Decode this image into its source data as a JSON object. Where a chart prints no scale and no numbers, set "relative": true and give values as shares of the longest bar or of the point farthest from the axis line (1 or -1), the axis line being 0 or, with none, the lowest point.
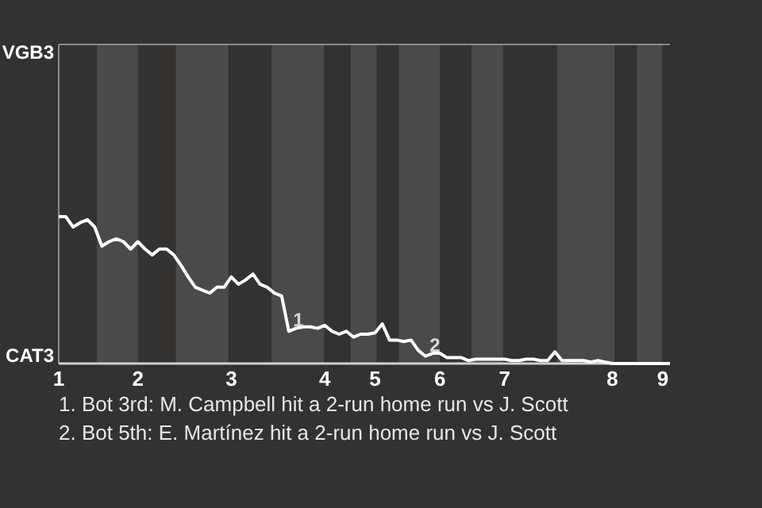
{
  "chart_data": {
    "type": "line",
    "relative": true,
    "categories": [
      "1",
      null,
      null,
      null,
      null,
      null,
      null,
      null,
      null,
      null,
      null,
      "2",
      null,
      null,
      null,
      null,
      null,
      null,
      null,
      null,
      null,
      null,
      null,
      null,
      "3",
      null,
      null,
      null,
      null,
      null,
      null,
      null,
      null,
      null,
      null,
      null,
      null,
      "4",
      null,
      null,
      null,
      null,
      null,
      null,
      "5",
      null,
      null,
      null,
      null,
      null,
      null,
      null,
      null,
      "6",
      null,
      null,
      null,
      null,
      null,
      null,
      null,
      null,
      "7",
      null,
      null,
      null,
      null,
      null,
      null,
      null,
      null,
      null,
      null,
      null,
      null,
      null,
      null,
      "8",
      null,
      null,
      null,
      null,
      null,
      null,
      "9",
      null
    ],
    "marker": "none",
    "line_style": "solid",
    "series": [
      {
        "color": "#ffffff",
        "values": [
          1,
          1,
          0.93,
          0.96,
          0.98,
          0.93,
          0.8,
          0.83,
          0.85,
          0.83,
          0.78,
          0.83,
          0.78,
          0.74,
          0.78,
          0.78,
          0.74,
          0.67,
          0.59,
          0.52,
          0.5,
          0.48,
          0.52,
          0.52,
          0.59,
          0.54,
          0.57,
          0.61,
          0.54,
          0.52,
          0.48,
          0.46,
          0.22,
          0.24,
          0.25,
          0.25,
          0.24,
          0.26,
          0.22,
          0.2,
          0.22,
          0.18,
          0.2,
          0.2,
          0.21,
          0.27,
          0.16,
          0.16,
          0.15,
          0.16,
          0.09,
          0.05,
          0.07,
          0.07,
          0.04,
          0.04,
          0.04,
          0.02,
          0.03,
          0.03,
          0.03,
          0.03,
          0.03,
          0.02,
          0.02,
          0.03,
          0.03,
          0.02,
          0.02,
          0.08,
          0.02,
          0.02,
          0.02,
          0.02,
          0.01,
          0.02,
          0.01,
          0,
          0,
          0,
          0,
          0,
          0,
          0,
          0,
          0
        ]
      }
    ],
    "annotations": [
      "VGB3",
      "CAT3",
      {
        "text": "1",
        "y": 0.22
      },
      {
        "text": "2",
        "y": 0.05
      },
      "1. Bot 3rd: M. Campbell hit a 2-run home run vs J. Scott",
      "2. Bot 5th: E. Martínez hit a 2-run home run vs J. Scott"
    ]
  }
}
